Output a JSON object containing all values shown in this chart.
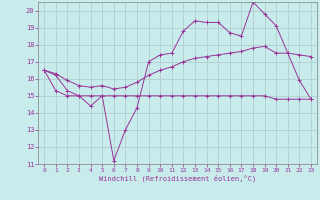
{
  "xlabel": "Windchill (Refroidissement éolien,°C)",
  "bg_color": "#c8ecec",
  "grid_color": "#b0c8c8",
  "line_color": "#993399",
  "spine_color": "#808080",
  "xlim": [
    -0.5,
    23.5
  ],
  "ylim": [
    11,
    20.5
  ],
  "xticks": [
    0,
    1,
    2,
    3,
    4,
    5,
    6,
    7,
    8,
    9,
    10,
    11,
    12,
    13,
    14,
    15,
    16,
    17,
    18,
    19,
    20,
    21,
    22,
    23
  ],
  "yticks": [
    11,
    12,
    13,
    14,
    15,
    16,
    17,
    18,
    19,
    20
  ],
  "series1_x": [
    0,
    1,
    2,
    3,
    4,
    5,
    6,
    7,
    8,
    9,
    10,
    11,
    12,
    13,
    14,
    15,
    16,
    17,
    18,
    19,
    20,
    21,
    22,
    23
  ],
  "series1_y": [
    16.5,
    16.2,
    15.3,
    15.0,
    14.4,
    15.0,
    11.2,
    13.0,
    14.3,
    17.0,
    17.4,
    17.5,
    18.8,
    19.4,
    19.3,
    19.3,
    18.7,
    18.5,
    20.5,
    19.8,
    19.1,
    17.5,
    15.9,
    14.8
  ],
  "series2_x": [
    0,
    1,
    2,
    3,
    4,
    5,
    6,
    7,
    8,
    9,
    10,
    11,
    12,
    13,
    14,
    15,
    16,
    17,
    18,
    19,
    20,
    21,
    22,
    23
  ],
  "series2_y": [
    16.5,
    15.3,
    15.0,
    15.0,
    15.0,
    15.0,
    15.0,
    15.0,
    15.0,
    15.0,
    15.0,
    15.0,
    15.0,
    15.0,
    15.0,
    15.0,
    15.0,
    15.0,
    15.0,
    15.0,
    14.8,
    14.8,
    14.8,
    14.8
  ],
  "series3_x": [
    0,
    1,
    2,
    3,
    4,
    5,
    6,
    7,
    8,
    9,
    10,
    11,
    12,
    13,
    14,
    15,
    16,
    17,
    18,
    19,
    20,
    21,
    22,
    23
  ],
  "series3_y": [
    16.5,
    16.3,
    15.9,
    15.6,
    15.5,
    15.6,
    15.4,
    15.5,
    15.8,
    16.2,
    16.5,
    16.7,
    17.0,
    17.2,
    17.3,
    17.4,
    17.5,
    17.6,
    17.8,
    17.9,
    17.5,
    17.5,
    17.4,
    17.3
  ]
}
